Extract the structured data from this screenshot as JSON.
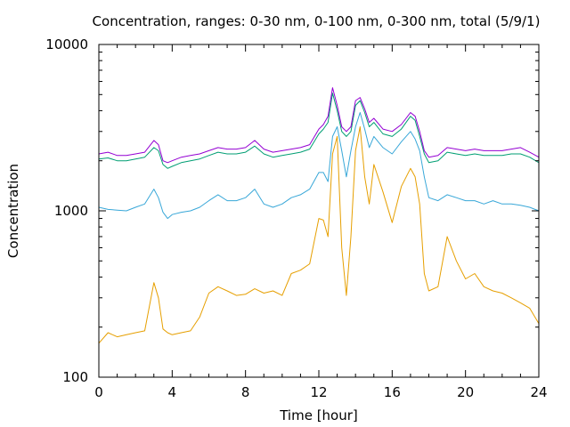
{
  "chart_data": {
    "type": "line",
    "title": "Concentration, ranges: 0-30 nm, 0-100 nm, 0-300 nm, total (5/9/1)",
    "xlabel": "Time [hour]",
    "ylabel": "Concentration",
    "xlim": [
      0,
      24
    ],
    "ylim": [
      100,
      10000
    ],
    "yscale": "log",
    "grid": false,
    "x_ticks": [
      0,
      4,
      8,
      12,
      16,
      20,
      24
    ],
    "x_tick_labels": [
      "0",
      "4",
      "8",
      "12",
      "16",
      "20",
      "24"
    ],
    "y_ticks": [
      100,
      1000,
      10000
    ],
    "y_tick_labels": [
      "100",
      "1000",
      "10000"
    ],
    "colors": {
      "series_0_30": "#e69f00",
      "series_0_100": "#38a7d8",
      "series_0_300": "#009e73",
      "series_total": "#9400d3"
    },
    "x": [
      0,
      0.5,
      1,
      1.5,
      2,
      2.5,
      3,
      3.25,
      3.5,
      3.75,
      4,
      4.5,
      5,
      5.5,
      6,
      6.5,
      7,
      7.5,
      8,
      8.5,
      9,
      9.5,
      10,
      10.5,
      11,
      11.5,
      12,
      12.25,
      12.5,
      12.75,
      13,
      13.25,
      13.5,
      13.75,
      14,
      14.25,
      14.5,
      14.75,
      15,
      15.5,
      16,
      16.5,
      17,
      17.25,
      17.5,
      17.75,
      18,
      18.5,
      19,
      19.5,
      20,
      20.5,
      21,
      21.5,
      22,
      22.5,
      23,
      23.5,
      24
    ],
    "series": [
      {
        "values": [
          160,
          185,
          175,
          180,
          185,
          190,
          370,
          300,
          195,
          185,
          180,
          185,
          190,
          230,
          320,
          350,
          330,
          310,
          315,
          340,
          320,
          330,
          310,
          420,
          440,
          480,
          900,
          880,
          700,
          2200,
          2800,
          600,
          310,
          700,
          2300,
          3200,
          1600,
          1100,
          1900,
          1300,
          850,
          1400,
          1800,
          1600,
          1100,
          420,
          330,
          350,
          700,
          500,
          390,
          420,
          350,
          330,
          320,
          300,
          280,
          260,
          210
        ]
      },
      {
        "values": [
          1050,
          1020,
          1010,
          1000,
          1050,
          1100,
          1350,
          1200,
          980,
          900,
          950,
          980,
          1000,
          1050,
          1150,
          1250,
          1150,
          1150,
          1200,
          1350,
          1100,
          1050,
          1100,
          1200,
          1250,
          1350,
          1700,
          1700,
          1500,
          2800,
          3200,
          2300,
          1600,
          2300,
          3200,
          3900,
          3100,
          2400,
          2800,
          2400,
          2200,
          2600,
          3000,
          2700,
          2300,
          1600,
          1200,
          1150,
          1250,
          1200,
          1150,
          1150,
          1100,
          1150,
          1100,
          1100,
          1080,
          1050,
          1000
        ]
      },
      {
        "values": [
          2050,
          2080,
          2000,
          2000,
          2050,
          2100,
          2400,
          2300,
          1900,
          1800,
          1850,
          1950,
          2000,
          2050,
          2150,
          2250,
          2200,
          2200,
          2250,
          2450,
          2200,
          2100,
          2150,
          2200,
          2250,
          2350,
          2900,
          3100,
          3400,
          5100,
          4000,
          3000,
          2800,
          3000,
          4300,
          4600,
          3900,
          3200,
          3400,
          2900,
          2800,
          3100,
          3700,
          3500,
          2800,
          2200,
          1950,
          2000,
          2250,
          2200,
          2150,
          2200,
          2150,
          2150,
          2150,
          2200,
          2200,
          2100,
          1950
        ]
      },
      {
        "values": [
          2200,
          2250,
          2150,
          2150,
          2200,
          2250,
          2650,
          2500,
          2000,
          1950,
          2000,
          2100,
          2150,
          2200,
          2300,
          2400,
          2350,
          2350,
          2400,
          2650,
          2350,
          2250,
          2300,
          2350,
          2400,
          2500,
          3100,
          3300,
          3700,
          5500,
          4300,
          3200,
          3000,
          3200,
          4600,
          4800,
          4100,
          3400,
          3600,
          3100,
          3000,
          3300,
          3900,
          3700,
          3000,
          2300,
          2100,
          2150,
          2400,
          2350,
          2300,
          2350,
          2300,
          2300,
          2300,
          2350,
          2400,
          2250,
          2100
        ]
      }
    ]
  }
}
